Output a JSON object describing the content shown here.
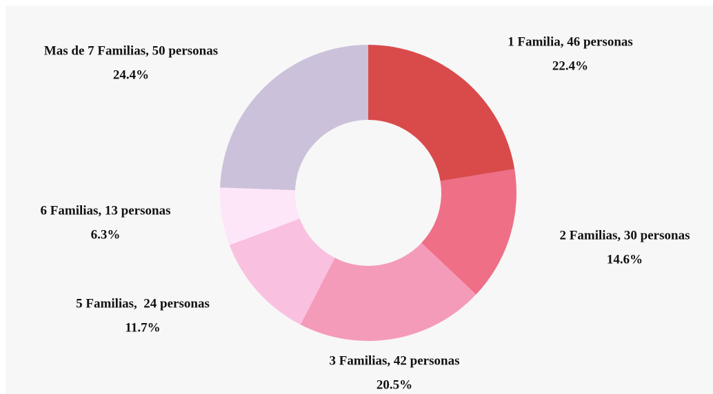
{
  "chart_data": {
    "type": "donut",
    "categories": [
      "1 Familia, 46 personas",
      "2 Familias, 30 personas",
      "3 Familias, 42 personas",
      "5 Familias,  24 personas",
      "6 Familias, 13 personas",
      "Mas de 7 Familias, 50 personas"
    ],
    "values": [
      22.4,
      14.6,
      20.5,
      11.7,
      6.3,
      24.4
    ],
    "value_labels": [
      "22.4%",
      "14.6%",
      "20.5%",
      "11.7%",
      "6.3%",
      "24.4%"
    ],
    "colors": [
      "#d94b4b",
      "#ee6f86",
      "#f59bba",
      "#f9c1df",
      "#fee6f9",
      "#ccc1da"
    ]
  }
}
